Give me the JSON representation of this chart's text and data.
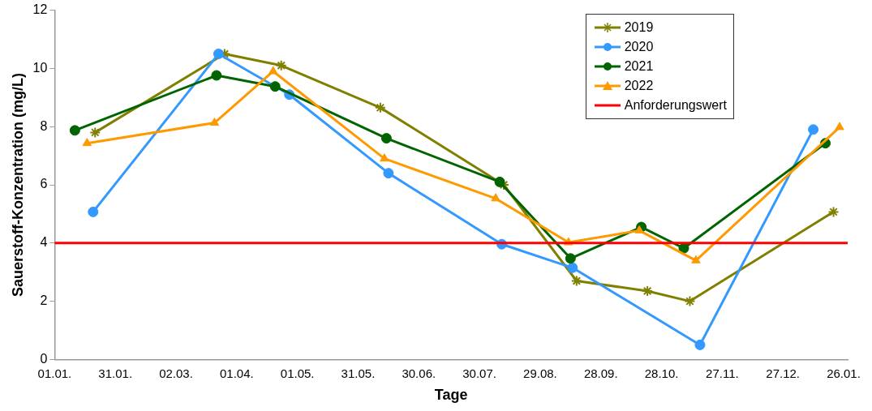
{
  "chart_data": {
    "type": "line",
    "xlabel": "Tage",
    "ylabel": "Sauerstoff-Konzentration (mg/L)",
    "xlim": [
      "2021-01-01",
      "2022-01-28"
    ],
    "xticks": [
      {
        "value": "2021-01-01",
        "label": "01.01."
      },
      {
        "value": "2021-01-31",
        "label": "31.01."
      },
      {
        "value": "2021-03-02",
        "label": "02.03."
      },
      {
        "value": "2021-04-01",
        "label": "01.04."
      },
      {
        "value": "2021-05-01",
        "label": "01.05."
      },
      {
        "value": "2021-05-31",
        "label": "31.05."
      },
      {
        "value": "2021-06-30",
        "label": "30.06."
      },
      {
        "value": "2021-07-30",
        "label": "30.07."
      },
      {
        "value": "2021-08-29",
        "label": "29.08."
      },
      {
        "value": "2021-09-28",
        "label": "28.09."
      },
      {
        "value": "2021-10-28",
        "label": "28.10."
      },
      {
        "value": "2021-11-27",
        "label": "27.11."
      },
      {
        "value": "2021-12-27",
        "label": "27.12."
      },
      {
        "value": "2022-01-26",
        "label": "26.01."
      }
    ],
    "ylim": [
      0,
      12
    ],
    "yticks": [
      0,
      2,
      4,
      6,
      8,
      10,
      12
    ],
    "grid": false,
    "legend": "top right",
    "line_style": "solid",
    "series": [
      {
        "name": "2019",
        "color": "#808000",
        "marker": "cross",
        "x": [
          "2021-01-21",
          "2021-03-26",
          "2021-04-23",
          "2021-06-11",
          "2021-08-11",
          "2021-09-16",
          "2021-10-21",
          "2021-11-11",
          "2022-01-21"
        ],
        "values": [
          7.8,
          10.5,
          10.1,
          8.65,
          6.0,
          2.7,
          2.35,
          2.0,
          5.07
        ]
      },
      {
        "name": "2020",
        "color": "#3399ff",
        "marker": "circle",
        "x": [
          "2021-01-20",
          "2021-03-23",
          "2021-04-27",
          "2021-06-15",
          "2021-08-10",
          "2021-09-14",
          "2021-11-16",
          "2022-01-11"
        ],
        "values": [
          5.07,
          10.5,
          9.1,
          6.4,
          3.96,
          3.15,
          0.5,
          7.9
        ]
      },
      {
        "name": "2021",
        "color": "#006400",
        "marker": "circle",
        "x": [
          "2021-01-11",
          "2021-03-22",
          "2021-04-20",
          "2021-06-14",
          "2021-08-09",
          "2021-09-13",
          "2021-10-18",
          "2021-11-08",
          "2022-01-17"
        ],
        "values": [
          7.87,
          9.76,
          9.38,
          7.6,
          6.1,
          3.47,
          4.55,
          3.82,
          7.43
        ]
      },
      {
        "name": "2022",
        "color": "#ff9900",
        "marker": "triangle",
        "x": [
          "2021-01-17",
          "2021-03-21",
          "2021-04-19",
          "2021-06-13",
          "2021-08-07",
          "2021-09-12",
          "2021-10-17",
          "2021-11-14",
          "2022-01-24"
        ],
        "values": [
          7.43,
          8.13,
          9.9,
          6.9,
          5.53,
          4.02,
          4.43,
          3.4,
          7.98
        ]
      }
    ],
    "ref_lines": [
      {
        "axis": "y",
        "value": 4,
        "label": "Anforderungswert",
        "color": "#ff0000"
      }
    ]
  }
}
